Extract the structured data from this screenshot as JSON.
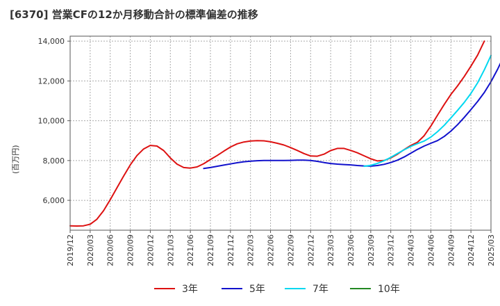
{
  "chart_data": {
    "type": "line",
    "title": "[6370]  営業CFの12か月移動合計の標準偏差の推移",
    "ylabel": "(百万円)",
    "xlabel": "",
    "ylim": [
      4500,
      14250
    ],
    "y_ticks": [
      6000,
      8000,
      10000,
      12000,
      14000
    ],
    "y_tick_labels": [
      "6,000",
      "8,000",
      "10,000",
      "12,000",
      "14,000"
    ],
    "x_tick_labels": [
      "2019/12",
      "2020/03",
      "2020/06",
      "2020/09",
      "2020/12",
      "2021/03",
      "2021/06",
      "2021/09",
      "2021/12",
      "2022/03",
      "2022/06",
      "2022/09",
      "2022/12",
      "2023/03",
      "2023/06",
      "2023/09",
      "2023/12",
      "2024/03",
      "2024/06",
      "2024/09",
      "2024/12",
      "2025/03"
    ],
    "grid": true,
    "legend_position": "bottom",
    "x_start": "2019/12",
    "series": [
      {
        "name": "3年",
        "color": "#dd1111",
        "start": "2019/12",
        "values": [
          4720,
          4710,
          4720,
          4800,
          5050,
          5480,
          6030,
          6620,
          7220,
          7780,
          8250,
          8580,
          8760,
          8730,
          8500,
          8130,
          7820,
          7650,
          7620,
          7680,
          7840,
          8050,
          8250,
          8470,
          8680,
          8840,
          8930,
          8980,
          9000,
          8990,
          8940,
          8870,
          8780,
          8650,
          8510,
          8350,
          8230,
          8220,
          8320,
          8500,
          8610,
          8610,
          8510,
          8390,
          8240,
          8090,
          7980,
          8000,
          8130,
          8320,
          8550,
          8760,
          8920,
          9250,
          9730,
          10280,
          10820,
          11320,
          11750,
          12220,
          12740,
          13300,
          14000
        ]
      },
      {
        "name": "5年",
        "color": "#1111cc",
        "start": "2021/08",
        "values": [
          7600,
          7650,
          7710,
          7770,
          7830,
          7890,
          7940,
          7970,
          7990,
          8000,
          8000,
          8000,
          8000,
          8010,
          8020,
          8020,
          8000,
          7960,
          7900,
          7850,
          7820,
          7800,
          7780,
          7750,
          7730,
          7720,
          7750,
          7810,
          7900,
          8020,
          8180,
          8370,
          8560,
          8730,
          8870,
          9000,
          9210,
          9480,
          9800,
          10170,
          10560,
          10970,
          11420,
          11960,
          12590,
          13300
        ]
      },
      {
        "name": "7年",
        "color": "#00d8f0",
        "start": "2023/08",
        "values": [
          7710,
          7760,
          7860,
          7990,
          8160,
          8350,
          8540,
          8710,
          8850,
          8980,
          9180,
          9450,
          9770,
          10140,
          10520,
          10920,
          11370,
          11910,
          12560,
          13280
        ]
      },
      {
        "name": "10年",
        "color": "#228822",
        "start": "",
        "values": []
      }
    ]
  }
}
